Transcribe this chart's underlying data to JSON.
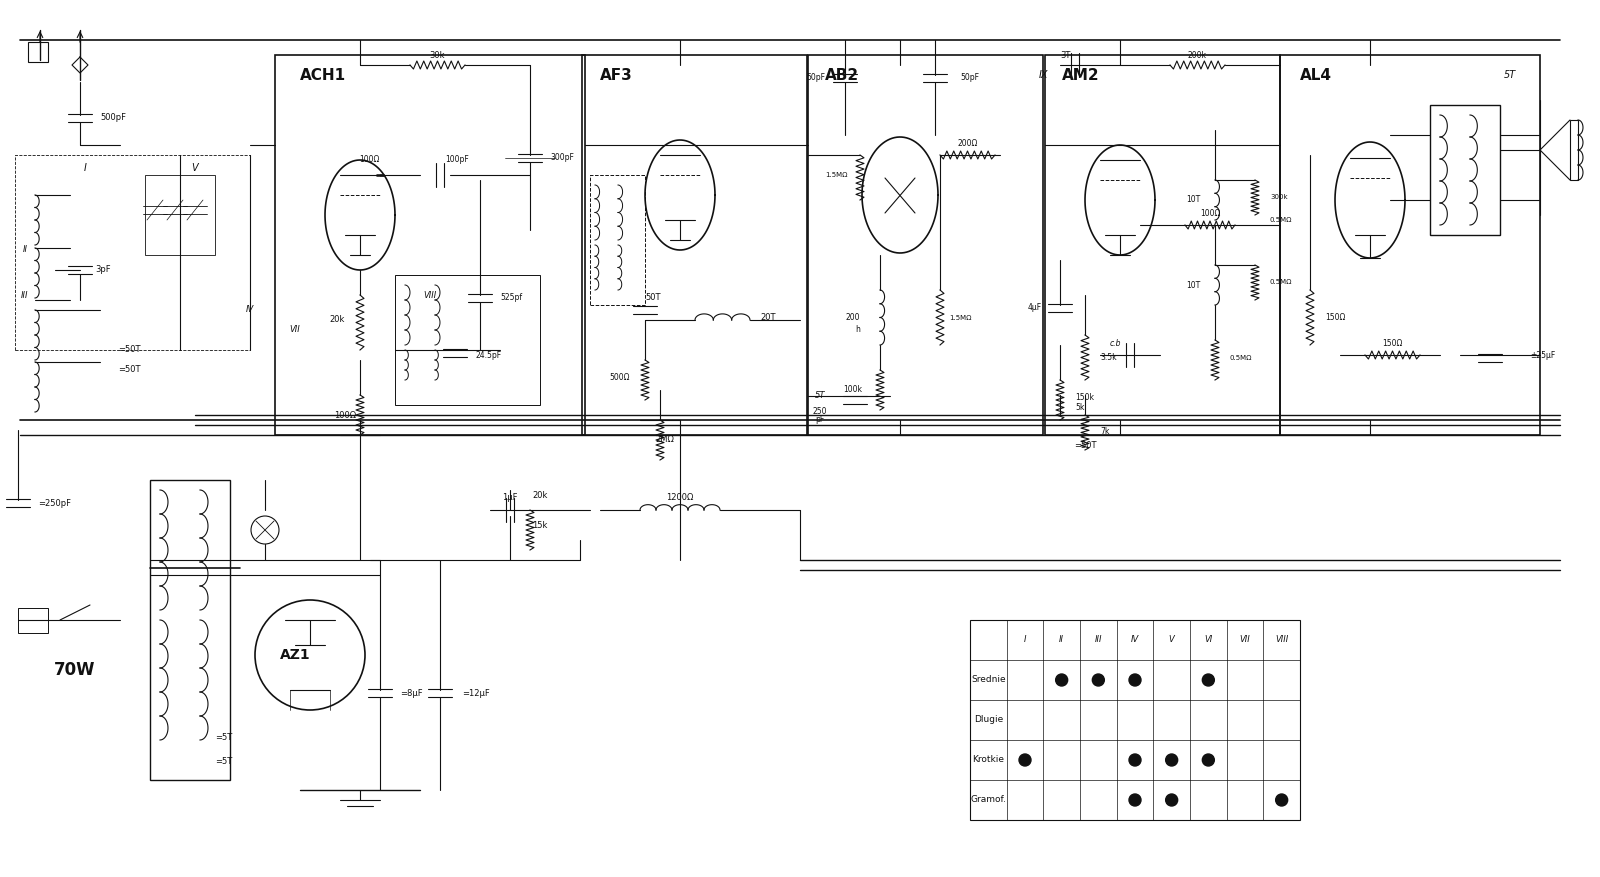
{
  "bg_color": "#ffffff",
  "line_color": "#111111",
  "fig_width": 16.0,
  "fig_height": 8.77,
  "dpi": 100,
  "table_rows": [
    "Srednie",
    "Dlugie",
    "Krotkie",
    "Gramof."
  ],
  "table_cols": [
    "I",
    "II",
    "III",
    "IV",
    "V",
    "VI",
    "VII",
    "VIII"
  ],
  "srednie_dots": [
    1,
    2,
    3,
    5
  ],
  "dlugie_dots": [],
  "krotkie_dots": [
    0,
    3,
    4,
    5
  ],
  "gramof_dots": [
    3,
    4,
    7
  ],
  "power_label": "70W",
  "ach1_label": "ACH1",
  "af3_label": "AF3",
  "ab2_label": "AB2",
  "am2_label": "AM2",
  "al4_label": "AL4",
  "az1_label": "AZ1"
}
